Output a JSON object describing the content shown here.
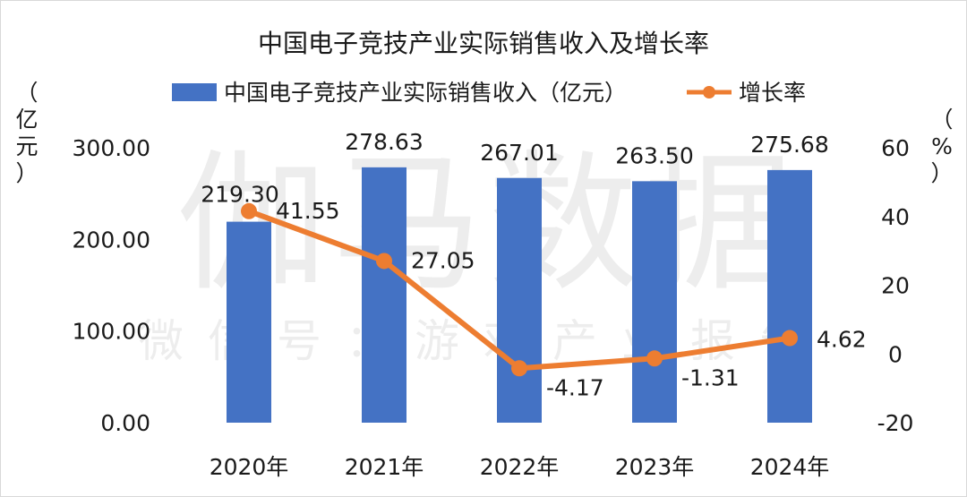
{
  "chart_data": {
    "type": "bar+line",
    "title": "中国电子竞技产业实际销售收入及增长率",
    "categories": [
      "2020年",
      "2021年",
      "2022年",
      "2023年",
      "2024年"
    ],
    "series": [
      {
        "name": "中国电子竞技产业实际销售收入（亿元）",
        "type": "bar",
        "axis": "left",
        "values": [
          219.3,
          278.63,
          267.01,
          263.5,
          275.68
        ],
        "labels": [
          "219.30",
          "278.63",
          "267.01",
          "263.50",
          "275.68"
        ],
        "color": "#4472C4"
      },
      {
        "name": "增长率",
        "type": "line",
        "axis": "right",
        "values": [
          41.55,
          27.05,
          -4.17,
          -1.31,
          4.62
        ],
        "labels": [
          "41.55",
          "27.05",
          "-4.17",
          "-1.31",
          "4.62"
        ],
        "color": "#ED7D31"
      }
    ],
    "y_left": {
      "label_chars": [
        "（",
        "亿",
        "元",
        "）"
      ],
      "ylim": [
        0,
        300
      ],
      "ticks": [
        "0.00",
        "100.00",
        "200.00",
        "300.00"
      ],
      "tick_values": [
        0,
        100,
        200,
        300
      ]
    },
    "y_right": {
      "label_chars": [
        "（",
        "%",
        "）"
      ],
      "ylim": [
        -20,
        60
      ],
      "ticks": [
        "-20",
        "0",
        "20",
        "40",
        "60"
      ],
      "tick_values": [
        -20,
        0,
        20,
        40,
        60
      ]
    },
    "legend_position": "top",
    "grid": false
  },
  "watermark": {
    "main": "伽马数据",
    "sub": "微信号：游戏产业报告"
  }
}
